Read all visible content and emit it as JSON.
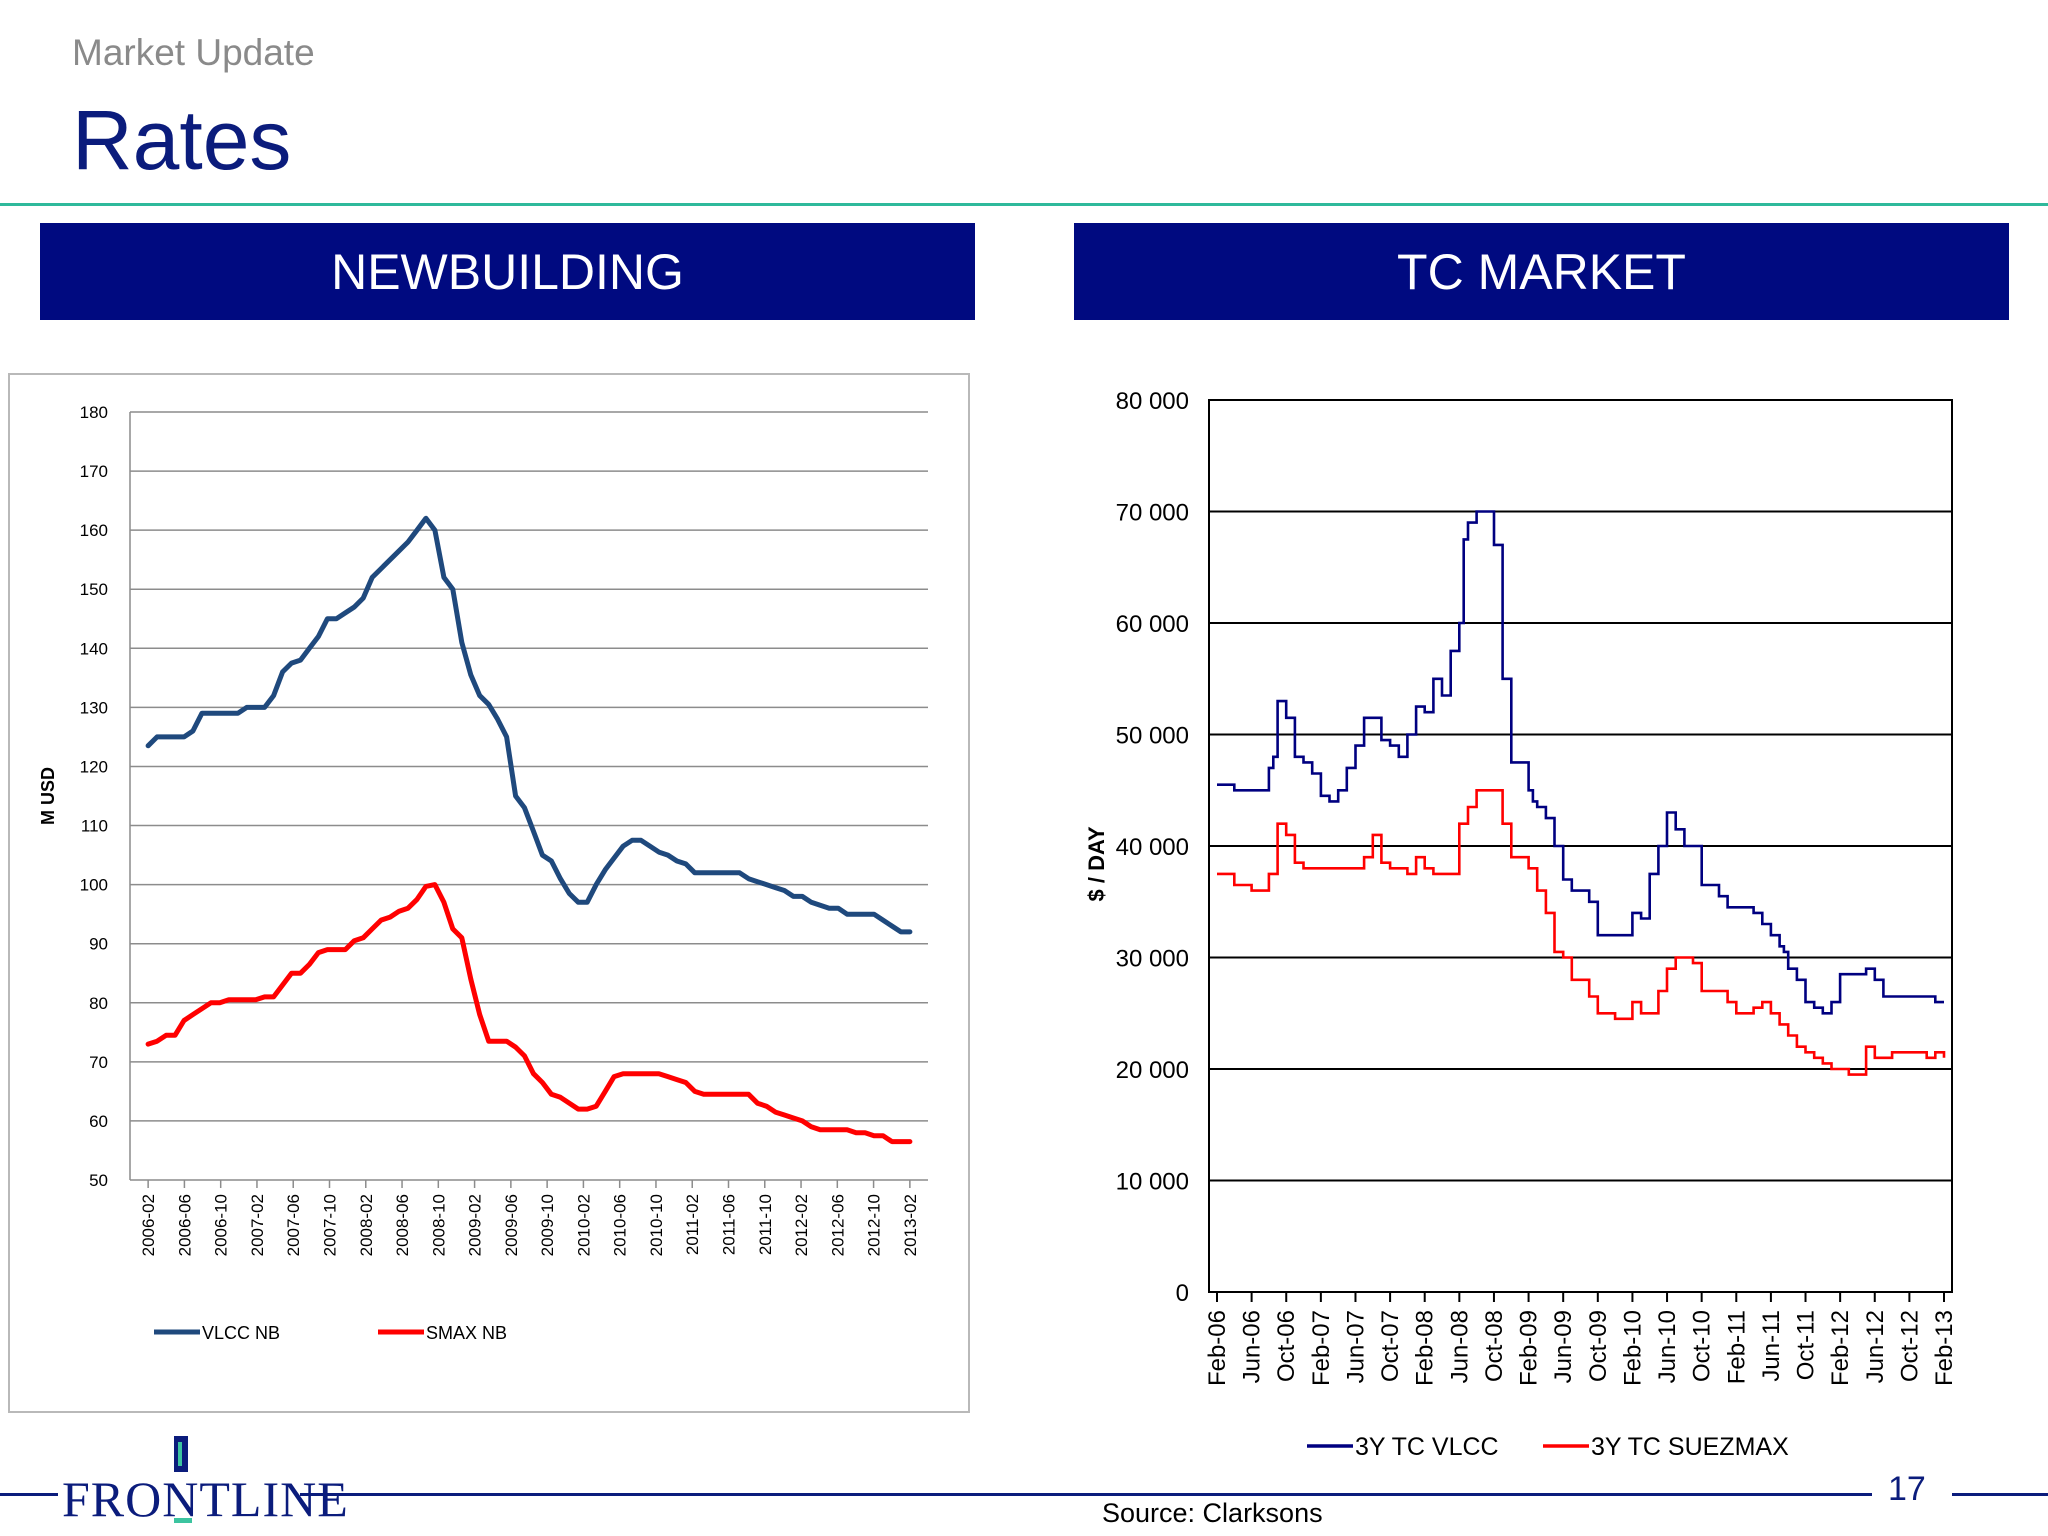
{
  "header": {
    "kicker": "Market Update",
    "title": "Rates"
  },
  "panels": {
    "left_label": "NEWBUILDING",
    "right_label": "TC MARKET"
  },
  "footer": {
    "logo_text": "FRONTLINE",
    "page_number": "17",
    "source": "Source: Clarksons"
  },
  "colors": {
    "navy": "#0b1c7c",
    "vlcc_nb": "#1f497d",
    "smax_nb": "#ff0000",
    "tc_vlcc": "#000080",
    "tc_smax": "#ff0000"
  },
  "chart_data": [
    {
      "type": "line",
      "title": "",
      "ylabel": "M USD",
      "ylim": [
        50,
        180
      ],
      "yticks": [
        "50",
        "60",
        "70",
        "80",
        "90",
        "100",
        "110",
        "120",
        "130",
        "140",
        "150",
        "160",
        "170",
        "180"
      ],
      "xticks": [
        "2006-02",
        "2006-06",
        "2006-10",
        "2007-02",
        "2007-06",
        "2007-10",
        "2008-02",
        "2008-06",
        "2008-10",
        "2009-02",
        "2009-06",
        "2009-10",
        "2010-02",
        "2010-06",
        "2010-10",
        "2011-02",
        "2011-06",
        "2011-10",
        "2012-02",
        "2012-06",
        "2012-10",
        "2013-02"
      ],
      "series": [
        {
          "name": "VLCC NB",
          "x": [
            0,
            1,
            2,
            3,
            4,
            5,
            6,
            7,
            8,
            9,
            10,
            11,
            12,
            13,
            14,
            15,
            16,
            17,
            18,
            19,
            20,
            21,
            22,
            23,
            24,
            25,
            26,
            27,
            28,
            29,
            30,
            31,
            32,
            33,
            34,
            35,
            36,
            37,
            38,
            39,
            40,
            41,
            42,
            43,
            44,
            45,
            46,
            47,
            48,
            49,
            50,
            51,
            52,
            53,
            54,
            55,
            56,
            57,
            58,
            59,
            60,
            61,
            62,
            63,
            64,
            65,
            66,
            67,
            68,
            69,
            70,
            71,
            72,
            73,
            74,
            75,
            76,
            77,
            78,
            79,
            80,
            81,
            82,
            83,
            84,
            85
          ],
          "values": [
            123.5,
            125,
            125,
            125,
            125,
            126,
            129,
            129,
            129,
            129,
            129,
            130,
            130,
            130,
            132,
            136,
            137.5,
            138,
            140,
            142,
            145,
            145,
            146,
            147,
            148.5,
            152,
            153.5,
            155,
            156.5,
            158,
            160,
            162,
            160,
            152,
            150,
            141,
            135.5,
            132,
            130.5,
            128,
            125,
            115,
            113,
            109,
            105,
            104,
            101,
            98.5,
            97,
            97,
            100,
            102.5,
            104.5,
            106.5,
            107.5,
            107.5,
            106.5,
            105.5,
            105,
            104,
            103.5,
            102,
            102,
            102,
            102,
            102,
            102,
            101,
            100.5,
            100,
            99.5,
            99,
            98,
            98,
            97,
            96.5,
            96,
            96,
            95,
            95,
            95,
            95,
            94,
            93,
            92,
            92
          ]
        },
        {
          "name": "SMAX NB",
          "x": [
            0,
            1,
            2,
            3,
            4,
            5,
            6,
            7,
            8,
            9,
            10,
            11,
            12,
            13,
            14,
            15,
            16,
            17,
            18,
            19,
            20,
            21,
            22,
            23,
            24,
            25,
            26,
            27,
            28,
            29,
            30,
            31,
            32,
            33,
            34,
            35,
            36,
            37,
            38,
            39,
            40,
            41,
            42,
            43,
            44,
            45,
            46,
            47,
            48,
            49,
            50,
            51,
            52,
            53,
            54,
            55,
            56,
            57,
            58,
            59,
            60,
            61,
            62,
            63,
            64,
            65,
            66,
            67,
            68,
            69,
            70,
            71,
            72,
            73,
            74,
            75,
            76,
            77,
            78,
            79,
            80,
            81,
            82,
            83,
            84,
            85
          ],
          "values": [
            73,
            73.5,
            74.5,
            74.5,
            77,
            78,
            79,
            80,
            80,
            80.5,
            80.5,
            80.5,
            80.5,
            81,
            81,
            83,
            85,
            85,
            86.5,
            88.5,
            89,
            89,
            89,
            90.5,
            91,
            92.5,
            94,
            94.5,
            95.5,
            96,
            97.5,
            99.7,
            100,
            97,
            92.5,
            91,
            84,
            78,
            73.5,
            73.5,
            73.5,
            72.5,
            71,
            68,
            66.5,
            64.5,
            64,
            63,
            62,
            62,
            62.5,
            65,
            67.5,
            68,
            68,
            68,
            68,
            68,
            67.5,
            67,
            66.5,
            65,
            64.5,
            64.5,
            64.5,
            64.5,
            64.5,
            64.5,
            63,
            62.5,
            61.5,
            61,
            60.5,
            60,
            59,
            58.5,
            58.5,
            58.5,
            58.5,
            58,
            58,
            57.5,
            57.5,
            56.5,
            56.5,
            56.5
          ]
        }
      ]
    },
    {
      "type": "line",
      "title": "",
      "ylabel": "$ / DAY",
      "ylim": [
        0,
        80000
      ],
      "yticks": [
        "0",
        "10 000",
        "20 000",
        "30 000",
        "40 000",
        "50 000",
        "60 000",
        "70 000",
        "80 000"
      ],
      "xticks": [
        "Feb-06",
        "Jun-06",
        "Oct-06",
        "Feb-07",
        "Jun-07",
        "Oct-07",
        "Feb-08",
        "Jun-08",
        "Oct-08",
        "Feb-09",
        "Jun-09",
        "Oct-09",
        "Feb-10",
        "Jun-10",
        "Oct-10",
        "Feb-11",
        "Jun-11",
        "Oct-11",
        "Feb-12",
        "Jun-12",
        "Oct-12",
        "Feb-13"
      ],
      "series": [
        {
          "name": "3Y TC VLCC",
          "x": [
            0,
            2,
            4,
            6,
            6.5,
            7,
            8,
            9,
            10,
            11,
            12,
            13,
            14,
            15,
            16,
            17,
            18,
            19,
            20,
            21,
            22,
            23,
            24,
            25,
            26,
            27,
            28,
            28.5,
            29,
            30,
            31,
            32,
            33,
            34,
            35,
            36,
            36.5,
            37,
            38,
            39,
            40,
            41,
            42,
            43,
            44,
            45,
            46,
            47,
            48,
            49,
            50,
            51,
            52,
            53,
            54,
            55,
            56,
            57,
            58,
            59,
            60,
            61,
            62,
            63,
            64,
            65,
            65.5,
            66,
            67,
            68,
            69,
            70,
            71,
            72,
            73,
            74,
            75,
            76,
            77,
            78,
            79,
            80,
            81,
            82,
            83,
            84
          ],
          "values": [
            45500,
            45000,
            45000,
            47000,
            48000,
            53000,
            51500,
            48000,
            47500,
            46500,
            44500,
            44000,
            45000,
            47000,
            49000,
            51500,
            51500,
            49500,
            49000,
            48000,
            50000,
            52500,
            52000,
            55000,
            53500,
            57500,
            60000,
            67500,
            69000,
            70000,
            70000,
            67000,
            55000,
            47500,
            47500,
            45000,
            44000,
            43500,
            42500,
            40000,
            37000,
            36000,
            36000,
            35000,
            32000,
            32000,
            32000,
            32000,
            34000,
            33500,
            37500,
            40000,
            43000,
            41500,
            40000,
            40000,
            36500,
            36500,
            35500,
            34500,
            34500,
            34500,
            34000,
            33000,
            32000,
            31000,
            30500,
            29000,
            28000,
            26000,
            25500,
            25000,
            26000,
            28500,
            28500,
            28500,
            29000,
            28000,
            26500,
            26500,
            26500,
            26500,
            26500,
            26500,
            26000,
            26000
          ]
        },
        {
          "name": "3Y TC SUEZMAX",
          "x": [
            0,
            2,
            4,
            6,
            7,
            8,
            9,
            10,
            11,
            12,
            13,
            14,
            15,
            16,
            17,
            18,
            19,
            20,
            21,
            22,
            23,
            24,
            25,
            26,
            27,
            28,
            29,
            30,
            31,
            32,
            33,
            34,
            35,
            36,
            37,
            38,
            39,
            40,
            41,
            42,
            43,
            44,
            45,
            46,
            47,
            48,
            49,
            50,
            51,
            52,
            53,
            54,
            55,
            56,
            57,
            58,
            59,
            60,
            61,
            62,
            63,
            64,
            65,
            66,
            67,
            68,
            69,
            70,
            71,
            72,
            73,
            74,
            75,
            76,
            77,
            78,
            79,
            80,
            81,
            82,
            83,
            84
          ],
          "values": [
            37500,
            36500,
            36000,
            37500,
            42000,
            41000,
            38500,
            38000,
            38000,
            38000,
            38000,
            38000,
            38000,
            38000,
            39000,
            41000,
            38500,
            38000,
            38000,
            37500,
            39000,
            38000,
            37500,
            37500,
            37500,
            42000,
            43500,
            45000,
            45000,
            45000,
            42000,
            39000,
            39000,
            38000,
            36000,
            34000,
            30500,
            30000,
            28000,
            28000,
            26500,
            25000,
            25000,
            24500,
            24500,
            26000,
            25000,
            25000,
            27000,
            29000,
            30000,
            30000,
            29500,
            27000,
            27000,
            27000,
            26000,
            25000,
            25000,
            25500,
            26000,
            25000,
            24000,
            23000,
            22000,
            21500,
            21000,
            20500,
            20000,
            20000,
            19500,
            19500,
            22000,
            21000,
            21000,
            21500,
            21500,
            21500,
            21500,
            21000,
            21500,
            21000
          ]
        }
      ]
    }
  ]
}
